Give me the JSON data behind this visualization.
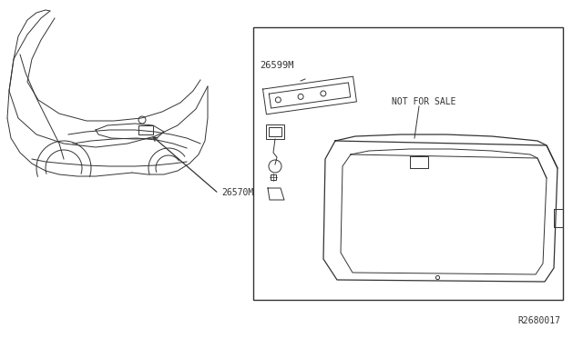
{
  "bg_color": "#ffffff",
  "line_color": "#333333",
  "label_26570M": "26570M",
  "label_26599M": "26599M",
  "label_nfs": "NOT FOR SALE",
  "label_r2680017": "R2680017",
  "fig_w": 6.4,
  "fig_h": 3.72,
  "dpi": 100
}
